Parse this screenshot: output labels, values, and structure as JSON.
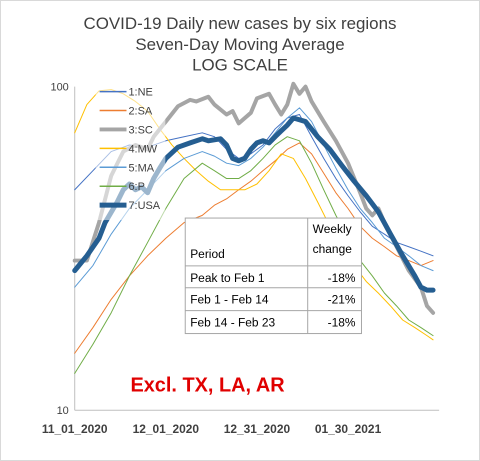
{
  "chart_data": {
    "type": "line",
    "title_lines": [
      "COVID-19 Daily new cases by six regions",
      "Seven-Day Moving Average",
      "LOG SCALE"
    ],
    "y_scale": "log",
    "ylim": [
      10,
      100
    ],
    "y_ticks": [
      {
        "value": 10,
        "label": "10"
      },
      {
        "value": 100,
        "label": "100"
      }
    ],
    "x_range": [
      0,
      120
    ],
    "x_ticks": [
      {
        "x": 0,
        "label": "11_01_2020"
      },
      {
        "x": 30,
        "label": "12_01_2020"
      },
      {
        "x": 60,
        "label": "12_31_2020"
      },
      {
        "x": 90,
        "label": "01_30_2021"
      }
    ],
    "x_note": "x = days since 11_01_2020",
    "series": [
      {
        "name": "1:NE",
        "color": "#4472c4",
        "width": 1,
        "points": [
          [
            0,
            48
          ],
          [
            6,
            55
          ],
          [
            12,
            63
          ],
          [
            18,
            66
          ],
          [
            24,
            65
          ],
          [
            30,
            68
          ],
          [
            36,
            70
          ],
          [
            42,
            72
          ],
          [
            46,
            70
          ],
          [
            50,
            64
          ],
          [
            54,
            60
          ],
          [
            58,
            62
          ],
          [
            62,
            66
          ],
          [
            66,
            74
          ],
          [
            70,
            80
          ],
          [
            74,
            82
          ],
          [
            78,
            70
          ],
          [
            82,
            60
          ],
          [
            86,
            52
          ],
          [
            90,
            46
          ],
          [
            94,
            41
          ],
          [
            98,
            37
          ],
          [
            102,
            35
          ],
          [
            106,
            33
          ],
          [
            110,
            32
          ],
          [
            114,
            31
          ],
          [
            118,
            30
          ]
        ]
      },
      {
        "name": "2:SA",
        "color": "#ed7d31",
        "width": 1,
        "points": [
          [
            0,
            15
          ],
          [
            6,
            18
          ],
          [
            12,
            22
          ],
          [
            18,
            26
          ],
          [
            24,
            30
          ],
          [
            30,
            34
          ],
          [
            36,
            38
          ],
          [
            42,
            40
          ],
          [
            46,
            43
          ],
          [
            50,
            45
          ],
          [
            54,
            48
          ],
          [
            58,
            51
          ],
          [
            62,
            55
          ],
          [
            66,
            59
          ],
          [
            70,
            64
          ],
          [
            74,
            67
          ],
          [
            78,
            62
          ],
          [
            82,
            54
          ],
          [
            86,
            47
          ],
          [
            90,
            42
          ],
          [
            94,
            37
          ],
          [
            98,
            34
          ],
          [
            102,
            32
          ],
          [
            106,
            30
          ],
          [
            110,
            29
          ],
          [
            114,
            28
          ],
          [
            118,
            29
          ]
        ]
      },
      {
        "name": "3:SC",
        "color": "#a5a5a5",
        "width": 4,
        "points": [
          [
            0,
            29
          ],
          [
            4,
            29
          ],
          [
            8,
            38
          ],
          [
            12,
            53
          ],
          [
            16,
            63
          ],
          [
            20,
            66
          ],
          [
            24,
            64
          ],
          [
            26,
            70
          ],
          [
            30,
            78
          ],
          [
            34,
            87
          ],
          [
            38,
            91
          ],
          [
            40,
            90
          ],
          [
            44,
            93
          ],
          [
            46,
            88
          ],
          [
            50,
            82
          ],
          [
            52,
            84
          ],
          [
            54,
            77
          ],
          [
            58,
            83
          ],
          [
            60,
            92
          ],
          [
            64,
            95
          ],
          [
            66,
            88
          ],
          [
            68,
            82
          ],
          [
            70,
            88
          ],
          [
            72,
            102
          ],
          [
            74,
            95
          ],
          [
            76,
            100
          ],
          [
            78,
            90
          ],
          [
            82,
            78
          ],
          [
            86,
            68
          ],
          [
            90,
            58
          ],
          [
            94,
            47
          ],
          [
            96,
            42
          ],
          [
            98,
            40
          ],
          [
            100,
            42
          ],
          [
            102,
            38
          ],
          [
            106,
            32
          ],
          [
            110,
            27
          ],
          [
            114,
            24
          ],
          [
            116,
            21
          ],
          [
            118,
            20
          ]
        ]
      },
      {
        "name": "4:MW",
        "color": "#ffc000",
        "width": 1,
        "points": [
          [
            0,
            72
          ],
          [
            4,
            88
          ],
          [
            8,
            97
          ],
          [
            12,
            98
          ],
          [
            16,
            95
          ],
          [
            20,
            90
          ],
          [
            24,
            84
          ],
          [
            28,
            74
          ],
          [
            32,
            66
          ],
          [
            36,
            60
          ],
          [
            40,
            55
          ],
          [
            44,
            51
          ],
          [
            48,
            48
          ],
          [
            52,
            48
          ],
          [
            56,
            48
          ],
          [
            60,
            50
          ],
          [
            64,
            55
          ],
          [
            68,
            62
          ],
          [
            72,
            60
          ],
          [
            76,
            52
          ],
          [
            80,
            44
          ],
          [
            84,
            37
          ],
          [
            88,
            32
          ],
          [
            92,
            28
          ],
          [
            96,
            25
          ],
          [
            100,
            23
          ],
          [
            104,
            21
          ],
          [
            108,
            19
          ],
          [
            112,
            18
          ],
          [
            116,
            17
          ],
          [
            118,
            16.5
          ]
        ]
      },
      {
        "name": "5:MA",
        "color": "#5b9bd5",
        "width": 1,
        "points": [
          [
            0,
            24
          ],
          [
            6,
            28
          ],
          [
            12,
            35
          ],
          [
            18,
            42
          ],
          [
            24,
            48
          ],
          [
            30,
            55
          ],
          [
            36,
            60
          ],
          [
            42,
            63
          ],
          [
            46,
            61
          ],
          [
            50,
            58
          ],
          [
            54,
            57
          ],
          [
            58,
            60
          ],
          [
            62,
            65
          ],
          [
            66,
            72
          ],
          [
            70,
            80
          ],
          [
            74,
            86
          ],
          [
            78,
            78
          ],
          [
            82,
            66
          ],
          [
            86,
            56
          ],
          [
            90,
            48
          ],
          [
            94,
            42
          ],
          [
            98,
            38
          ],
          [
            102,
            34
          ],
          [
            106,
            32
          ],
          [
            110,
            30
          ],
          [
            114,
            28
          ],
          [
            118,
            27
          ]
        ]
      },
      {
        "name": "6:P",
        "color": "#70ad47",
        "width": 1,
        "points": [
          [
            0,
            13
          ],
          [
            6,
            16
          ],
          [
            12,
            20
          ],
          [
            18,
            26
          ],
          [
            24,
            33
          ],
          [
            30,
            42
          ],
          [
            36,
            52
          ],
          [
            42,
            58
          ],
          [
            46,
            55
          ],
          [
            50,
            52
          ],
          [
            54,
            52
          ],
          [
            58,
            55
          ],
          [
            62,
            60
          ],
          [
            66,
            66
          ],
          [
            70,
            70
          ],
          [
            74,
            68
          ],
          [
            78,
            58
          ],
          [
            82,
            48
          ],
          [
            86,
            40
          ],
          [
            90,
            34
          ],
          [
            94,
            29
          ],
          [
            98,
            26
          ],
          [
            102,
            23
          ],
          [
            106,
            21
          ],
          [
            110,
            19
          ],
          [
            114,
            18
          ],
          [
            118,
            17
          ]
        ]
      },
      {
        "name": "7:USA",
        "color": "#255e91",
        "width": 5,
        "points": [
          [
            0,
            27
          ],
          [
            4,
            30
          ],
          [
            8,
            34
          ],
          [
            10,
            38
          ],
          [
            14,
            44
          ],
          [
            16,
            48
          ],
          [
            18,
            50
          ],
          [
            20,
            48
          ],
          [
            22,
            49
          ],
          [
            24,
            47
          ],
          [
            26,
            52
          ],
          [
            28,
            56
          ],
          [
            30,
            60
          ],
          [
            34,
            65
          ],
          [
            38,
            67
          ],
          [
            42,
            69
          ],
          [
            44,
            68
          ],
          [
            48,
            69
          ],
          [
            50,
            66
          ],
          [
            52,
            60
          ],
          [
            54,
            59
          ],
          [
            56,
            60
          ],
          [
            58,
            64
          ],
          [
            60,
            67
          ],
          [
            62,
            68
          ],
          [
            64,
            67
          ],
          [
            66,
            70
          ],
          [
            68,
            73
          ],
          [
            70,
            76
          ],
          [
            72,
            80
          ],
          [
            74,
            79
          ],
          [
            76,
            78
          ],
          [
            80,
            70
          ],
          [
            84,
            64
          ],
          [
            88,
            57
          ],
          [
            92,
            51
          ],
          [
            96,
            46
          ],
          [
            100,
            41
          ],
          [
            104,
            35
          ],
          [
            108,
            30
          ],
          [
            112,
            26
          ],
          [
            114,
            24
          ],
          [
            116,
            23.5
          ],
          [
            118,
            23.5
          ]
        ]
      }
    ],
    "table": {
      "rows": [
        [
          "Period",
          "Weekly change"
        ],
        [
          "Peak to Feb 1",
          "-18%"
        ],
        [
          "Feb 1 - Feb 14",
          "-21%"
        ],
        [
          "Feb 14 - Feb 23",
          "-18%"
        ]
      ]
    },
    "annotation": "Excl. TX, LA, AR",
    "legend_position": "top-left (inside plot)",
    "grid": false
  }
}
